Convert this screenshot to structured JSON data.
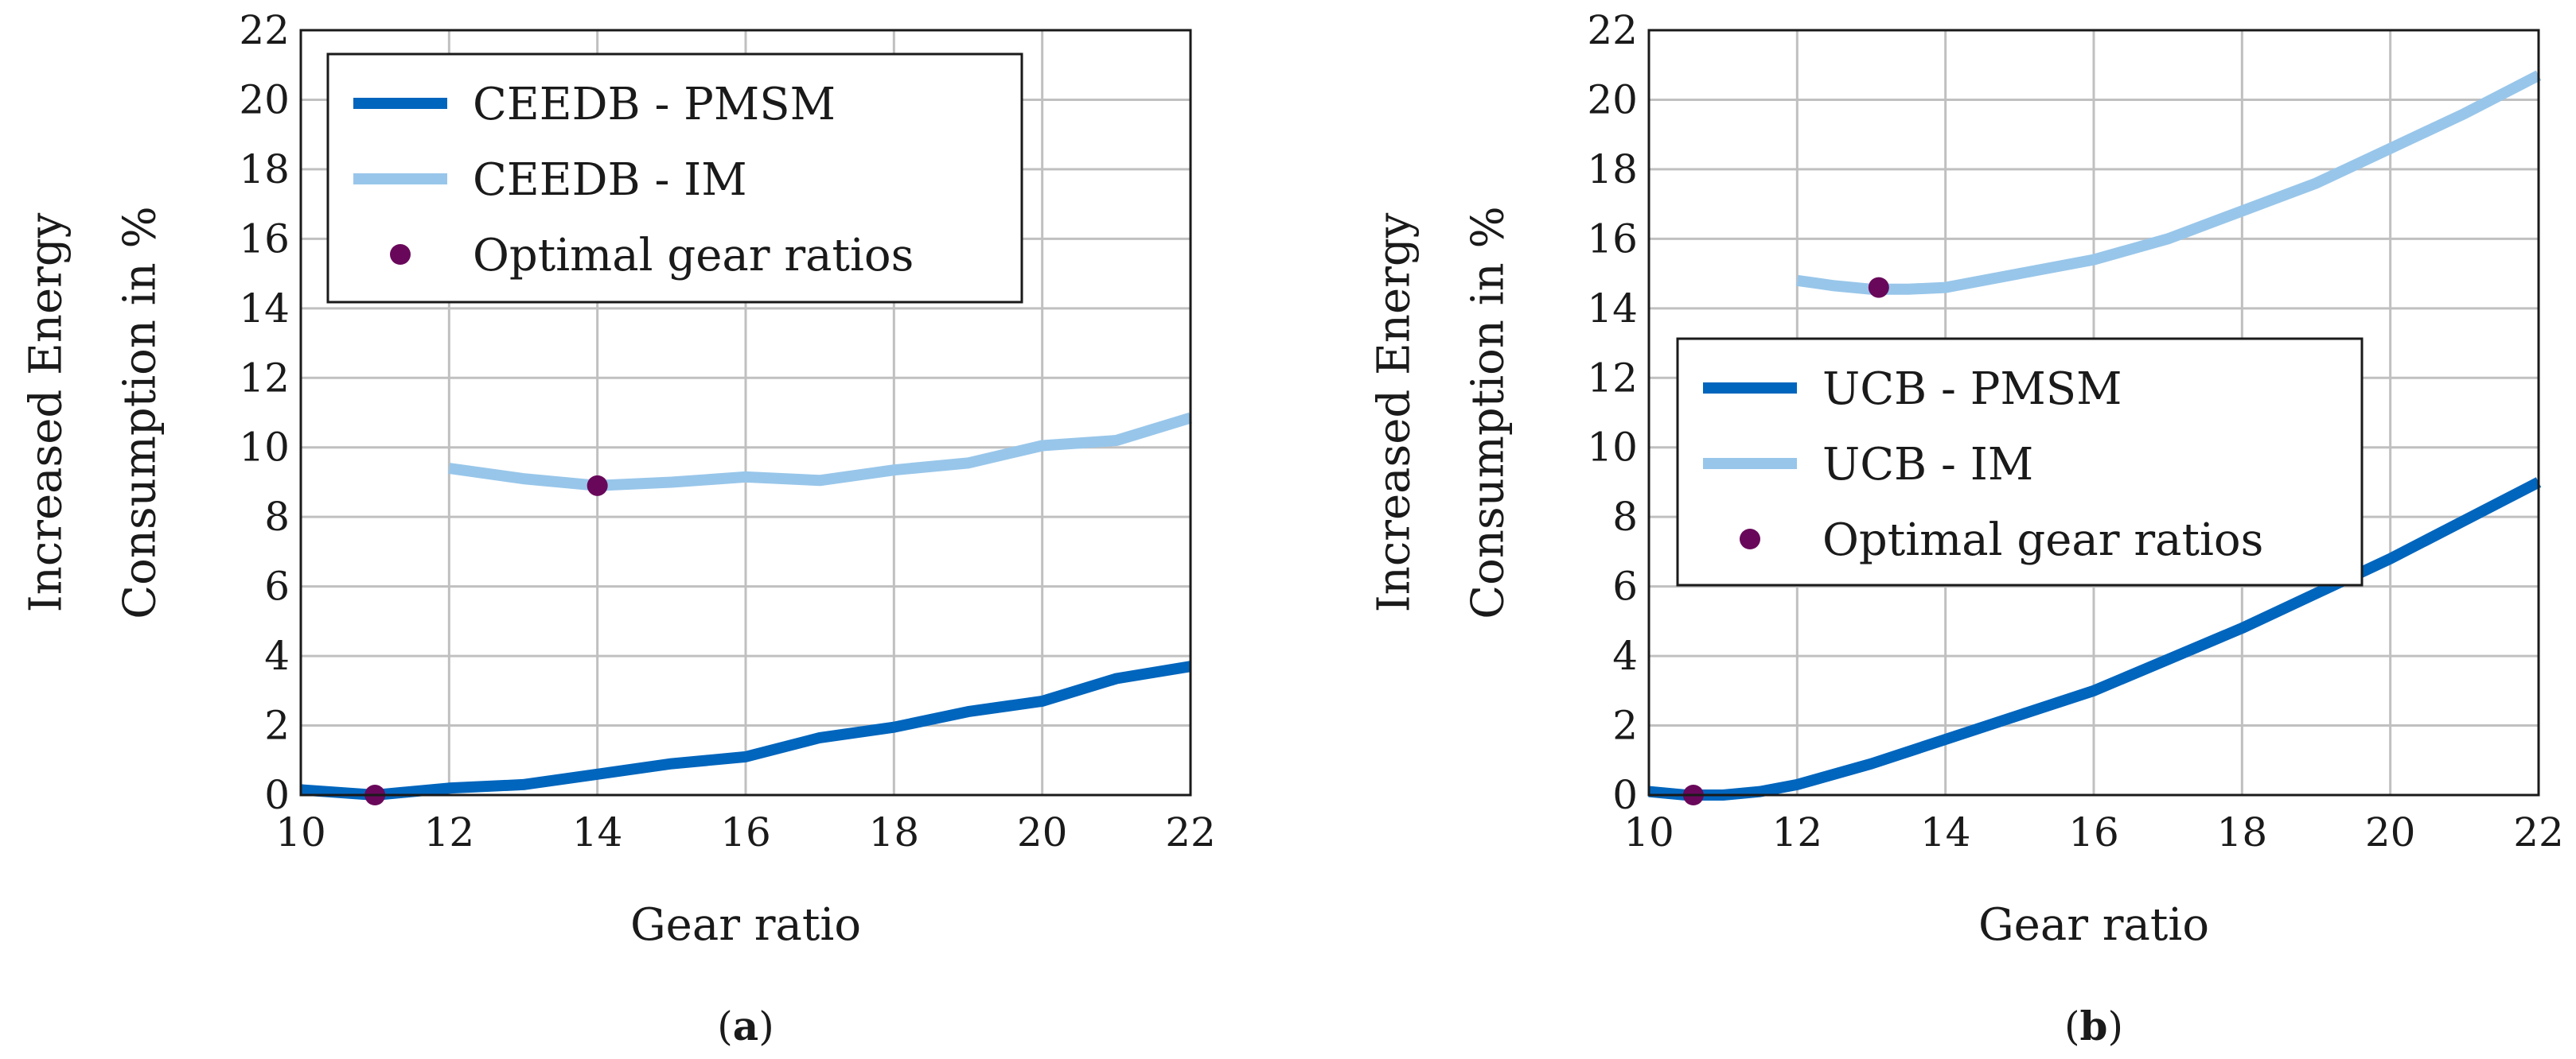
{
  "colors": {
    "pmsm": "#0065bd",
    "im": "#98c6ea",
    "optimal": "#69085a",
    "grid": "#c0c0c0",
    "frame": "#1a1a1a"
  },
  "chart_data": [
    {
      "type": "line",
      "panel": "a",
      "caption_letter": "a",
      "xlabel": "Gear ratio",
      "ylabel_line1": "Increased Energy",
      "ylabel_line2": "Consumption in %",
      "xlim": [
        10,
        22
      ],
      "ylim": [
        0,
        22
      ],
      "xticks": [
        10,
        12,
        14,
        16,
        18,
        20,
        22
      ],
      "yticks": [
        0,
        2,
        4,
        6,
        8,
        10,
        12,
        14,
        16,
        18,
        20,
        22
      ],
      "legend_position": "top-left",
      "series": [
        {
          "name": "CEEDB - PMSM",
          "color_key": "pmsm",
          "x": [
            10,
            11,
            12,
            13,
            14,
            15,
            16,
            17,
            18,
            19,
            20,
            21,
            22
          ],
          "y": [
            0.15,
            0.0,
            0.2,
            0.3,
            0.6,
            0.9,
            1.1,
            1.65,
            1.95,
            2.4,
            2.7,
            3.35,
            3.7
          ]
        },
        {
          "name": "CEEDB - IM",
          "color_key": "im",
          "x": [
            12,
            13,
            14,
            15,
            16,
            17,
            18,
            19,
            20,
            21,
            22
          ],
          "y": [
            9.4,
            9.1,
            8.9,
            9.0,
            9.15,
            9.05,
            9.35,
            9.55,
            10.05,
            10.2,
            10.85
          ]
        }
      ],
      "optimal_label": "Optimal gear ratios",
      "optimal_points": [
        {
          "x": 11,
          "y": 0.0
        },
        {
          "x": 14,
          "y": 8.9
        }
      ]
    },
    {
      "type": "line",
      "panel": "b",
      "caption_letter": "b",
      "xlabel": "Gear ratio",
      "ylabel_line1": "Increased Energy",
      "ylabel_line2": "Consumption in %",
      "xlim": [
        10,
        22
      ],
      "ylim": [
        0,
        22
      ],
      "xticks": [
        10,
        12,
        14,
        16,
        18,
        20,
        22
      ],
      "yticks": [
        0,
        2,
        4,
        6,
        8,
        10,
        12,
        14,
        16,
        18,
        20,
        22
      ],
      "legend_position": "center-left",
      "series": [
        {
          "name": "UCB - PMSM",
          "color_key": "pmsm",
          "x": [
            10,
            10.5,
            11,
            11.5,
            12,
            13,
            14,
            15,
            16,
            17,
            18,
            19,
            20,
            21,
            22
          ],
          "y": [
            0.1,
            0.0,
            0.0,
            0.1,
            0.3,
            0.9,
            1.6,
            2.3,
            3.0,
            3.9,
            4.8,
            5.8,
            6.8,
            7.9,
            9.0
          ]
        },
        {
          "name": "UCB - IM",
          "color_key": "im",
          "x": [
            12,
            12.5,
            13,
            13.5,
            14,
            15,
            16,
            17,
            18,
            19,
            20,
            21,
            22
          ],
          "y": [
            14.8,
            14.65,
            14.55,
            14.55,
            14.6,
            15.0,
            15.4,
            16.0,
            16.8,
            17.6,
            18.6,
            19.6,
            20.7
          ]
        }
      ],
      "optimal_label": "Optimal gear ratios",
      "optimal_points": [
        {
          "x": 10.6,
          "y": 0.0
        },
        {
          "x": 13.1,
          "y": 14.6
        }
      ]
    }
  ]
}
